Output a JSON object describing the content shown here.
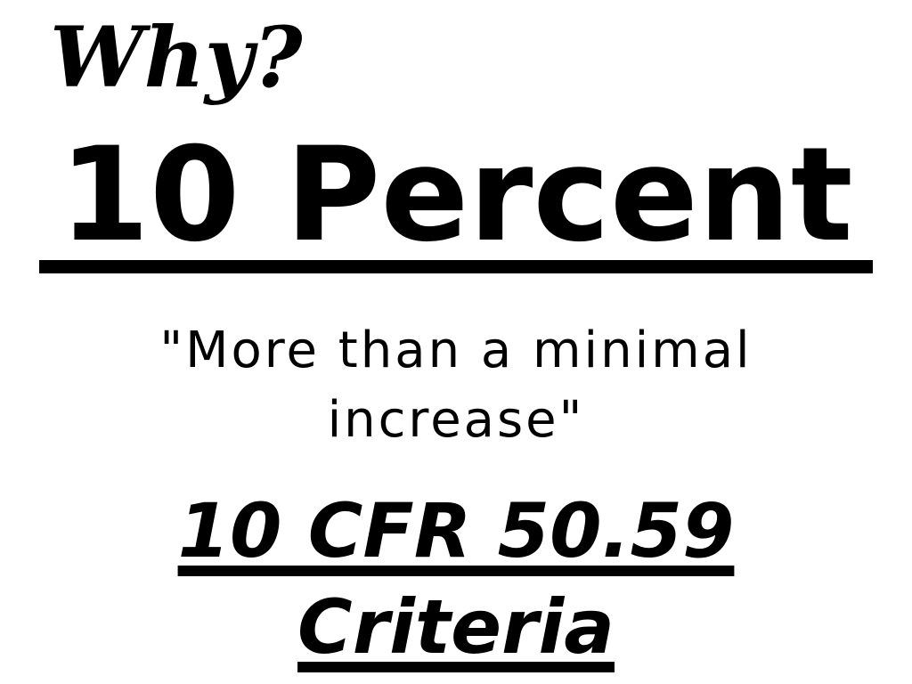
{
  "slide": {
    "background_color": "#ffffff",
    "text_color": "#000000",
    "eyebrow": "Why?",
    "title": "10 Percent",
    "quote": {
      "line1": "\"More than a minimal",
      "line2": "increase\""
    },
    "heading": {
      "line1": "10 CFR 50.59",
      "line2": "Criteria"
    }
  }
}
